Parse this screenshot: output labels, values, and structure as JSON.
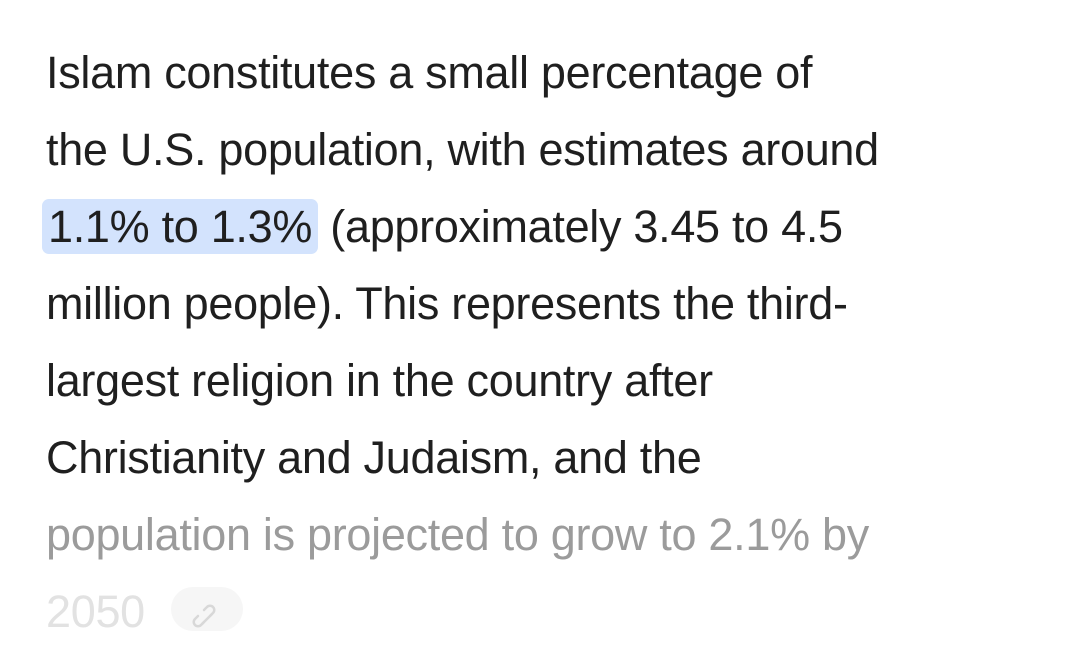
{
  "paragraph": {
    "lines_before": [
      "Islam constitutes a small percentage of",
      "the U.S. population, with estimates around"
    ],
    "highlight": "1.1% to 1.3%",
    "after_highlight": "(approximately 3.45 to 4.5",
    "lines_after": [
      "million people). This represents the third-",
      "largest religion in the country after",
      "Christianity and Judaism, and the"
    ],
    "faded_line": "population is projected to grow to 2.1% by",
    "last_line": "2050"
  }
}
